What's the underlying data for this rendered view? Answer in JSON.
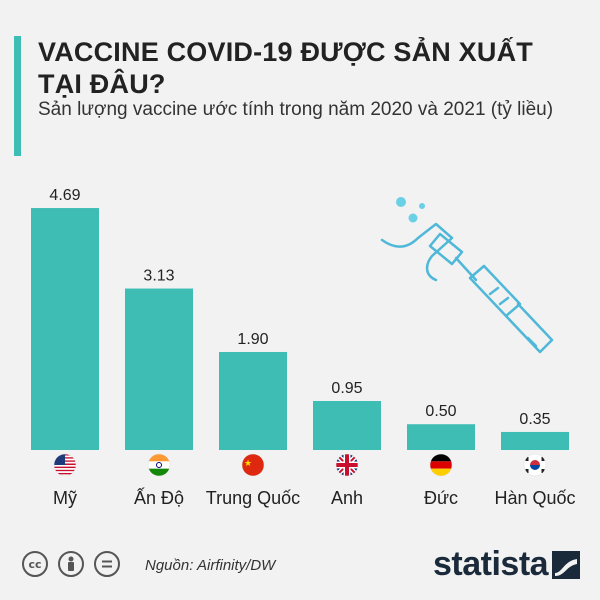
{
  "header": {
    "title": "VACCINE COVID-19 ĐƯỢC SẢN XUẤT TẠI ĐÂU?",
    "subtitle": "Sản lượng vaccine ước tính trong năm 2020 và 2021 (tỷ liều)"
  },
  "colors": {
    "bar": "#3dbdb3",
    "accent": "#3dbdb3",
    "illustration": "#4fb8d8"
  },
  "chart_data": {
    "type": "bar",
    "categories": [
      "Mỹ",
      "Ấn Độ",
      "Trung Quốc",
      "Anh",
      "Đức",
      "Hàn Quốc"
    ],
    "values": [
      4.69,
      3.13,
      1.9,
      0.95,
      0.5,
      0.35
    ],
    "value_labels": [
      "4.69",
      "3.13",
      "1.90",
      "0.95",
      "0.50",
      "0.35"
    ],
    "flags": [
      "us-flag-icon",
      "india-flag-icon",
      "china-flag-icon",
      "uk-flag-icon",
      "germany-flag-icon",
      "korea-flag-icon"
    ],
    "title": "VACCINE COVID-19 ĐƯỢC SẢN XUẤT TẠI ĐÂU?",
    "ylim": [
      0,
      5
    ],
    "grid": false,
    "legend": "none"
  },
  "footer": {
    "source": "Nguồn: Airfinity/DW",
    "brand": "statista",
    "license_icons": [
      "cc-icon",
      "person-icon",
      "equals-icon"
    ]
  }
}
